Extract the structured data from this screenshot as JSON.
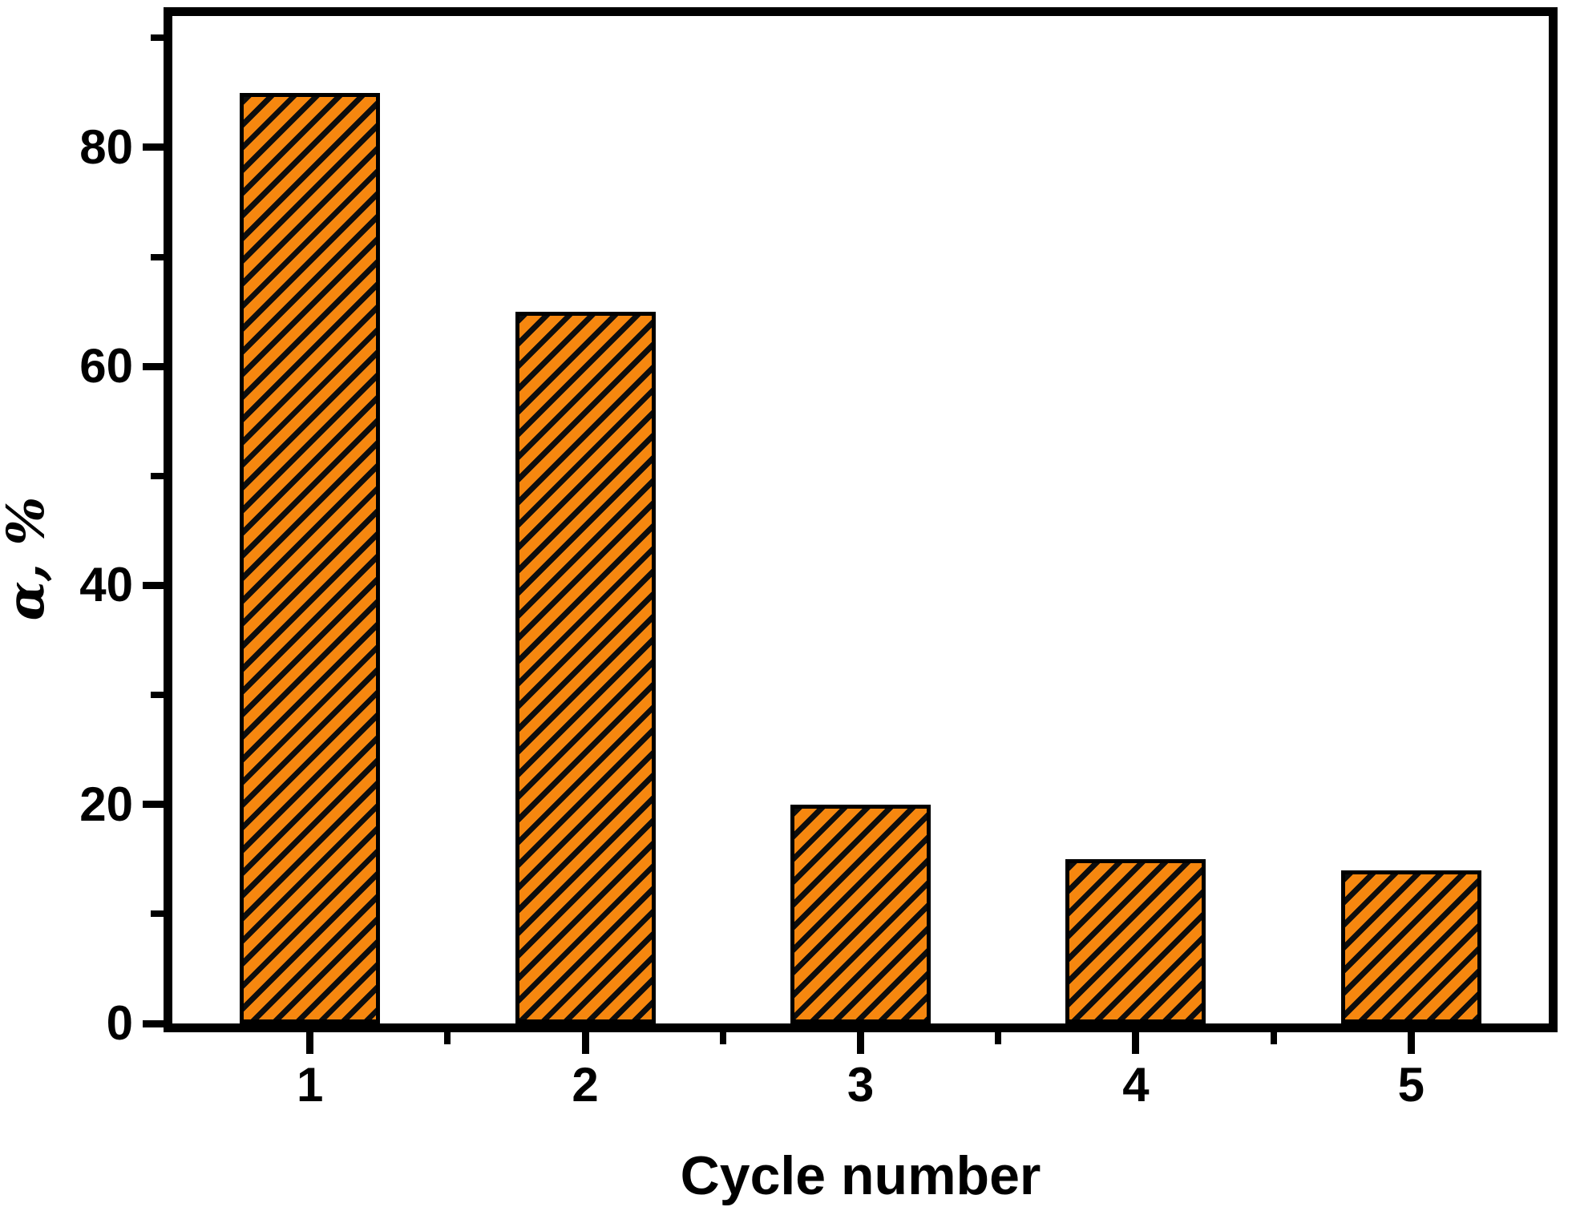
{
  "chart_data": {
    "type": "bar",
    "categories": [
      "1",
      "2",
      "3",
      "4",
      "5"
    ],
    "values": [
      85,
      65,
      20,
      15,
      14
    ],
    "title": "",
    "xlabel": "Cycle number",
    "ylabel": "α, %",
    "ylim": [
      0,
      92
    ],
    "yticks_major": [
      0,
      20,
      40,
      60,
      80
    ],
    "yticks_minor": [
      10,
      30,
      50,
      70,
      90
    ],
    "x_minor_ticks_between_categories": true,
    "grid": "off",
    "legend": "none",
    "bar_fill_color": "#F6870F",
    "bar_hatch_color": "#0D0D0D",
    "bar_hatch_style": "diagonal-forward-slash",
    "axis_color": "#000000"
  }
}
